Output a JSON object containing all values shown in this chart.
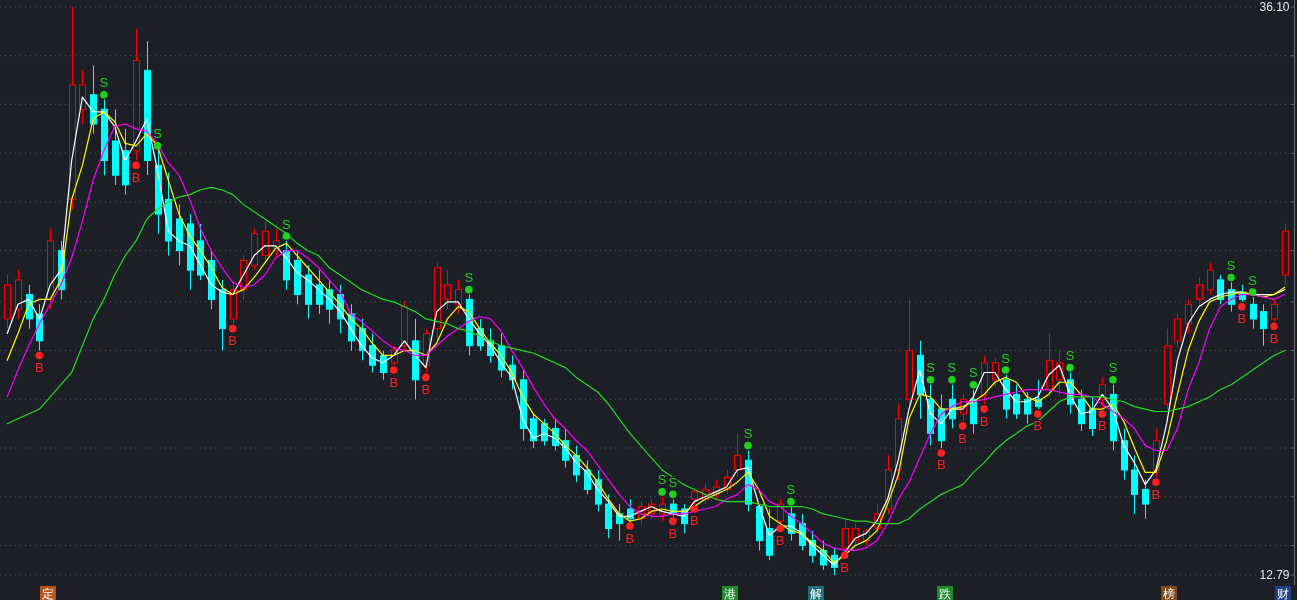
{
  "chart_data": {
    "type": "candlestick",
    "categories": [
      null,
      null,
      null,
      null,
      null,
      null,
      null,
      null,
      null,
      null,
      null,
      null,
      null,
      null,
      null,
      null,
      null,
      null,
      null,
      null,
      null,
      null,
      null,
      null,
      null,
      null,
      null,
      null,
      null,
      null,
      null,
      null,
      null,
      null,
      null,
      null,
      null,
      null,
      null,
      null,
      null,
      null,
      null,
      null,
      null,
      null,
      null,
      null,
      null,
      null,
      null,
      null,
      null,
      null,
      null,
      null,
      null,
      null,
      null,
      null,
      null,
      null,
      null,
      null,
      null,
      null,
      null,
      null,
      null,
      null,
      null,
      null,
      null,
      null,
      null,
      null,
      null,
      null,
      null,
      null,
      null,
      null,
      null,
      null,
      null,
      null,
      null,
      null,
      null,
      null,
      null,
      null,
      null,
      null,
      null,
      null,
      null,
      null,
      null,
      null,
      null,
      null,
      null,
      null,
      null,
      null,
      null,
      null,
      null,
      null,
      null,
      null,
      null,
      null,
      null,
      null,
      null,
      null,
      null,
      null
    ],
    "ohlc": [
      [
        23.3,
        25.1,
        22.9,
        24.7
      ],
      [
        23.7,
        25.3,
        23.3,
        24.9
      ],
      [
        24.3,
        24.7,
        22.9,
        23.3
      ],
      [
        23.5,
        23.9,
        22.0,
        22.4
      ],
      [
        24.1,
        27.0,
        23.7,
        26.5
      ],
      [
        26.1,
        26.5,
        24.1,
        24.5
      ],
      [
        28.2,
        36.1,
        27.8,
        32.9
      ],
      [
        31.9,
        33.5,
        31.3,
        32.9
      ],
      [
        32.5,
        33.7,
        30.9,
        31.3
      ],
      [
        31.9,
        32.3,
        29.2,
        29.8
      ],
      [
        30.6,
        31.9,
        28.8,
        29.2
      ],
      [
        30.2,
        31.1,
        28.4,
        28.8
      ],
      [
        30.2,
        35.2,
        29.8,
        33.9
      ],
      [
        33.5,
        34.7,
        29.2,
        29.8
      ],
      [
        29.6,
        30.2,
        26.8,
        27.6
      ],
      [
        28.2,
        29.3,
        25.9,
        26.5
      ],
      [
        27.4,
        28.0,
        25.5,
        26.1
      ],
      [
        27.2,
        27.6,
        24.5,
        25.3
      ],
      [
        26.5,
        27.2,
        24.9,
        25.1
      ],
      [
        25.7,
        26.1,
        23.7,
        24.1
      ],
      [
        24.5,
        24.9,
        22.0,
        22.9
      ],
      [
        23.3,
        24.9,
        23.1,
        24.5
      ],
      [
        24.5,
        25.9,
        24.1,
        25.7
      ],
      [
        25.5,
        27.0,
        25.3,
        26.8
      ],
      [
        25.9,
        27.3,
        25.6,
        26.9
      ],
      [
        26.1,
        27.0,
        25.8,
        26.5
      ],
      [
        26.1,
        26.5,
        24.5,
        24.9
      ],
      [
        25.7,
        26.1,
        23.9,
        24.3
      ],
      [
        25.1,
        25.5,
        23.3,
        23.9
      ],
      [
        24.7,
        25.3,
        23.5,
        23.9
      ],
      [
        24.5,
        24.9,
        23.1,
        23.7
      ],
      [
        24.3,
        24.7,
        22.7,
        23.3
      ],
      [
        23.5,
        23.9,
        22.0,
        22.4
      ],
      [
        22.9,
        23.3,
        21.6,
        22.0
      ],
      [
        22.2,
        22.7,
        21.1,
        21.4
      ],
      [
        21.8,
        22.0,
        20.8,
        21.1
      ],
      [
        21.5,
        22.2,
        21.4,
        22.0
      ],
      [
        22.2,
        24.0,
        22.0,
        23.8
      ],
      [
        22.4,
        23.3,
        20.0,
        20.8
      ],
      [
        21.4,
        22.9,
        21.1,
        22.7
      ],
      [
        22.9,
        25.6,
        22.4,
        25.4
      ],
      [
        24.1,
        25.3,
        23.7,
        24.7
      ],
      [
        23.9,
        24.9,
        23.5,
        24.5
      ],
      [
        24.1,
        24.3,
        21.8,
        22.2
      ],
      [
        22.9,
        23.3,
        22.0,
        22.2
      ],
      [
        22.4,
        22.9,
        21.5,
        21.8
      ],
      [
        22.2,
        22.7,
        20.9,
        21.2
      ],
      [
        21.4,
        21.8,
        20.4,
        20.8
      ],
      [
        20.8,
        21.2,
        18.3,
        18.8
      ],
      [
        19.2,
        19.4,
        18.0,
        18.3
      ],
      [
        19.0,
        19.2,
        18.1,
        18.3
      ],
      [
        18.8,
        19.2,
        17.9,
        18.1
      ],
      [
        18.3,
        18.8,
        17.2,
        17.5
      ],
      [
        17.7,
        18.1,
        16.6,
        16.9
      ],
      [
        17.1,
        17.5,
        16.1,
        16.3
      ],
      [
        16.7,
        17.1,
        15.4,
        15.7
      ],
      [
        15.7,
        16.1,
        14.3,
        14.7
      ],
      [
        15.3,
        15.7,
        14.2,
        14.9
      ],
      [
        15.5,
        15.9,
        15.0,
        15.1
      ],
      [
        15.1,
        15.8,
        14.9,
        15.6
      ],
      [
        15.3,
        15.9,
        15.1,
        15.7
      ],
      [
        15.3,
        16.0,
        15.0,
        15.7
      ],
      [
        15.7,
        15.9,
        15.2,
        15.3
      ],
      [
        15.5,
        15.7,
        14.5,
        14.9
      ],
      [
        15.9,
        16.3,
        15.7,
        16.2
      ],
      [
        15.9,
        16.5,
        15.7,
        16.3
      ],
      [
        16.1,
        16.7,
        15.9,
        16.4
      ],
      [
        16.3,
        17.1,
        16.1,
        16.8
      ],
      [
        17.1,
        18.6,
        16.8,
        17.7
      ],
      [
        17.5,
        17.9,
        15.4,
        15.7
      ],
      [
        15.6,
        15.7,
        13.8,
        14.2
      ],
      [
        14.7,
        15.5,
        13.4,
        13.6
      ],
      [
        15.0,
        15.9,
        14.9,
        15.7
      ],
      [
        15.3,
        15.6,
        14.2,
        14.5
      ],
      [
        14.9,
        15.3,
        13.8,
        14.0
      ],
      [
        14.2,
        14.6,
        13.3,
        13.6
      ],
      [
        13.8,
        14.2,
        13.0,
        13.2
      ],
      [
        13.6,
        13.9,
        12.79,
        13.1
      ],
      [
        13.9,
        15.1,
        13.8,
        14.7
      ],
      [
        14.2,
        14.9,
        14.0,
        14.7
      ],
      [
        14.2,
        14.7,
        14.0,
        14.6
      ],
      [
        14.7,
        15.7,
        14.5,
        15.3
      ],
      [
        15.5,
        17.7,
        15.3,
        17.1
      ],
      [
        17.1,
        19.8,
        16.7,
        19.2
      ],
      [
        20.0,
        24.1,
        19.8,
        22.0
      ],
      [
        21.8,
        22.4,
        19.2,
        20.2
      ],
      [
        20.0,
        20.6,
        18.1,
        18.6
      ],
      [
        19.6,
        20.2,
        18.0,
        18.3
      ],
      [
        20.0,
        20.6,
        18.8,
        19.2
      ],
      [
        19.4,
        20.2,
        19.1,
        20.0
      ],
      [
        20.0,
        20.4,
        18.6,
        19.0
      ],
      [
        20.2,
        21.8,
        19.8,
        21.5
      ],
      [
        20.8,
        21.7,
        20.5,
        21.5
      ],
      [
        20.8,
        21.0,
        19.2,
        19.6
      ],
      [
        20.2,
        20.6,
        19.2,
        19.4
      ],
      [
        20.0,
        20.3,
        19.0,
        19.4
      ],
      [
        20.0,
        20.8,
        19.6,
        19.7
      ],
      [
        20.4,
        22.7,
        20.1,
        21.6
      ],
      [
        20.8,
        22.0,
        20.2,
        21.5
      ],
      [
        20.8,
        21.1,
        19.4,
        19.8
      ],
      [
        20.0,
        20.4,
        18.7,
        19.0
      ],
      [
        19.6,
        20.1,
        18.5,
        18.8
      ],
      [
        20.0,
        20.9,
        19.6,
        20.6
      ],
      [
        20.2,
        20.6,
        17.9,
        18.3
      ],
      [
        18.3,
        18.8,
        16.7,
        17.1
      ],
      [
        17.1,
        17.7,
        15.3,
        16.1
      ],
      [
        16.3,
        16.7,
        15.1,
        15.7
      ],
      [
        17.1,
        18.8,
        16.8,
        18.3
      ],
      [
        19.8,
        22.9,
        19.6,
        22.2
      ],
      [
        22.4,
        23.5,
        22.1,
        23.3
      ],
      [
        23.1,
        24.1,
        22.7,
        23.9
      ],
      [
        24.1,
        25.0,
        23.8,
        24.7
      ],
      [
        24.5,
        25.6,
        24.3,
        25.3
      ],
      [
        24.9,
        25.1,
        23.9,
        24.1
      ],
      [
        24.5,
        24.8,
        23.6,
        23.9
      ],
      [
        24.4,
        24.7,
        24.0,
        24.1
      ],
      [
        23.9,
        24.2,
        22.9,
        23.3
      ],
      [
        23.6,
        23.9,
        22.2,
        22.9
      ],
      [
        23.3,
        24.1,
        23.2,
        23.9
      ],
      [
        25.1,
        27.2,
        24.7,
        26.9
      ]
    ],
    "colors": [
      "#ff0000",
      "#ff0000",
      "#00ffff",
      "#00ffff",
      "#ff0000",
      "#00ffff",
      "#ff0000",
      "#ff0000",
      "#00ffff",
      "#00ffff",
      "#00ffff",
      "#00ffff",
      "#ff0000",
      "#00ffff",
      "#00ffff",
      "#00ffff",
      "#00ffff",
      "#00ffff",
      "#00ffff",
      "#00ffff",
      "#00ffff",
      "#ff0000",
      "#ff0000",
      "#ff0000",
      "#ff0000",
      "#ff0000",
      "#00ffff",
      "#00ffff",
      "#00ffff",
      "#00ffff",
      "#00ffff",
      "#00ffff",
      "#00ffff",
      "#00ffff",
      "#00ffff",
      "#00ffff",
      "#ff0000",
      "#ff0000",
      "#00ffff",
      "#ff0000",
      "#ff0000",
      "#ff0000",
      "#ff0000",
      "#00ffff",
      "#00ffff",
      "#00ffff",
      "#00ffff",
      "#00ffff",
      "#00ffff",
      "#00ffff",
      "#00ffff",
      "#00ffff",
      "#00ffff",
      "#00ffff",
      "#00ffff",
      "#00ffff",
      "#00ffff",
      "#00ffff",
      "#00ffff",
      "#ff0000",
      "#ff0000",
      "#ff0000",
      "#00ffff",
      "#00ffff",
      "#ff0000",
      "#ff0000",
      "#ff0000",
      "#ff0000",
      "#ff0000",
      "#00ffff",
      "#00ffff",
      "#00ffff",
      "#ff0000",
      "#00ffff",
      "#00ffff",
      "#00ffff",
      "#00ffff",
      "#00ffff",
      "#ff0000",
      "#ff0000",
      "#ff0000",
      "#ff0000",
      "#ff0000",
      "#ff0000",
      "#ff0000",
      "#00ffff",
      "#00ffff",
      "#00ffff",
      "#00ffff",
      "#ff0000",
      "#00ffff",
      "#ff0000",
      "#ff0000",
      "#00ffff",
      "#00ffff",
      "#00ffff",
      "#00ffff",
      "#ff0000",
      "#ff0000",
      "#00ffff",
      "#00ffff",
      "#00ffff",
      "#ff0000",
      "#00ffff",
      "#00ffff",
      "#00ffff",
      "#00ffff",
      "#ff0000",
      "#ff0000",
      "#ff0000",
      "#ff0000",
      "#ff0000",
      "#ff0000",
      "#00ffff",
      "#00ffff",
      "#00ffff",
      "#00ffff",
      "#00ffff",
      "#ff0000",
      "#ff0000"
    ],
    "grid": "y",
    "tick_labels": "y",
    "ylim": [
      12.79,
      36.1
    ],
    "yticks": [
      {
        "value": 36.1,
        "label": "36.10"
      },
      {
        "value": 34.1,
        "label": null
      },
      {
        "value": 32.1,
        "label": null
      },
      {
        "value": 30.1,
        "label": null
      },
      {
        "value": 28.1,
        "label": null
      },
      {
        "value": 26.1,
        "label": null
      },
      {
        "value": 24.0,
        "label": null
      },
      {
        "value": 22.0,
        "label": null
      },
      {
        "value": 20.0,
        "label": null
      },
      {
        "value": 18.0,
        "label": null
      },
      {
        "value": 16.0,
        "label": null
      },
      {
        "value": 14.0,
        "label": null
      },
      {
        "value": 12.79,
        "label": "12.79"
      }
    ],
    "annotations": [
      "定",
      "港",
      "解",
      "跌",
      "榜",
      "财"
    ],
    "series": [
      {
        "type": "line",
        "color": "#ffffff",
        "values": [
          22.7,
          23.9,
          24.1,
          23.3,
          24.7,
          25.3,
          29.8,
          32.4,
          31.8,
          31.8,
          31.2,
          29.8,
          30.6,
          31.5,
          29.4,
          26.9,
          26.5,
          26.3,
          25.5,
          24.7,
          24.4,
          24.3,
          25.1,
          25.9,
          26.3,
          26.3,
          25.8,
          25.2,
          24.9,
          24.5,
          24.1,
          23.6,
          22.9,
          22.2,
          21.7,
          21.5,
          21.8,
          22.4,
          21.8,
          21.3,
          23.6,
          24.0,
          24.0,
          23.3,
          22.7,
          22.2,
          21.5,
          20.9,
          19.2,
          18.4,
          18.6,
          18.4,
          18.0,
          17.4,
          17.0,
          16.3,
          15.8,
          15.2,
          15.2,
          15.4,
          15.6,
          15.4,
          15.3,
          15.2,
          15.8,
          16.0,
          16.2,
          16.4,
          17.1,
          17.2,
          15.7,
          14.4,
          14.8,
          14.8,
          14.5,
          14.0,
          13.6,
          13.2,
          13.7,
          14.3,
          14.5,
          15.0,
          15.9,
          17.5,
          19.6,
          21.2,
          19.4,
          19.0,
          19.6,
          19.6,
          20.1,
          21.1,
          21.1,
          20.4,
          19.9,
          19.9,
          20.1,
          21.0,
          21.4,
          20.2,
          19.4,
          19.5,
          20.2,
          19.6,
          18.1,
          17.4,
          16.5,
          17.1,
          19.0,
          21.6,
          23.1,
          23.8,
          24.1,
          24.3,
          24.4,
          24.4,
          24.3,
          24.3,
          24.3,
          24.5
        ]
      },
      {
        "type": "line",
        "color": "#ffff00",
        "values": [
          21.6,
          22.7,
          23.9,
          24.1,
          24.1,
          24.9,
          28.2,
          29.6,
          31.5,
          31.8,
          31.4,
          30.5,
          30.4,
          30.9,
          30.4,
          29.0,
          27.6,
          26.7,
          26.1,
          25.4,
          24.6,
          24.3,
          24.5,
          25.0,
          25.6,
          26.2,
          26.4,
          25.9,
          25.4,
          24.9,
          24.4,
          23.9,
          23.3,
          22.9,
          22.3,
          21.8,
          21.8,
          22.0,
          22.0,
          21.8,
          22.3,
          23.3,
          23.8,
          23.6,
          22.9,
          22.3,
          21.8,
          21.1,
          20.1,
          19.4,
          19.0,
          18.6,
          18.1,
          17.7,
          17.2,
          16.6,
          15.9,
          15.3,
          15.0,
          15.1,
          15.4,
          15.5,
          15.4,
          15.4,
          15.6,
          15.9,
          16.1,
          16.3,
          16.6,
          17.0,
          16.3,
          15.2,
          14.9,
          14.6,
          14.5,
          14.1,
          13.8,
          13.3,
          13.6,
          14.0,
          14.2,
          14.6,
          15.7,
          16.9,
          19.2,
          20.2,
          20.1,
          19.6,
          19.6,
          19.7,
          19.9,
          20.2,
          20.7,
          20.9,
          20.7,
          20.1,
          19.9,
          20.2,
          20.7,
          20.7,
          20.2,
          19.6,
          19.6,
          19.8,
          19.1,
          18.0,
          17.0,
          17.0,
          18.3,
          20.2,
          22.0,
          23.2,
          24.0,
          24.2,
          24.3,
          24.4,
          24.3,
          24.2,
          24.3,
          24.6
        ]
      },
      {
        "type": "line",
        "color": "#ff00ff",
        "values": [
          20.1,
          21.2,
          22.2,
          23.1,
          23.9,
          24.7,
          25.8,
          27.3,
          29.0,
          30.2,
          31.2,
          31.3,
          31.1,
          31.0,
          30.5,
          29.7,
          29.2,
          28.2,
          27.0,
          26.1,
          25.4,
          24.8,
          24.6,
          24.7,
          25.1,
          25.8,
          26.1,
          26.1,
          25.8,
          25.4,
          24.9,
          24.4,
          23.5,
          23.2,
          22.8,
          22.4,
          22.1,
          22.0,
          21.8,
          21.8,
          22.2,
          22.6,
          22.9,
          23.2,
          23.4,
          23.3,
          22.8,
          22.0,
          21.3,
          20.5,
          19.8,
          19.2,
          18.8,
          18.3,
          17.9,
          17.3,
          16.7,
          16.1,
          15.6,
          15.3,
          15.2,
          15.2,
          15.3,
          15.3,
          15.4,
          15.5,
          15.6,
          15.9,
          16.1,
          16.5,
          16.3,
          15.8,
          15.6,
          15.2,
          14.9,
          14.5,
          14.1,
          13.9,
          13.8,
          13.8,
          13.9,
          14.2,
          14.9,
          15.9,
          16.6,
          17.6,
          18.6,
          19.4,
          19.7,
          19.9,
          19.9,
          20.0,
          20.1,
          20.2,
          20.3,
          20.4,
          20.4,
          20.4,
          20.3,
          20.2,
          20.2,
          20.1,
          19.8,
          19.5,
          19.2,
          18.8,
          18.1,
          17.9,
          17.9,
          18.8,
          20.4,
          21.5,
          22.9,
          23.8,
          24.1,
          24.3,
          24.3,
          24.2,
          24.1,
          24.3
        ]
      },
      {
        "type": "line",
        "color": "#22dd22",
        "values": [
          19.0,
          19.2,
          19.4,
          19.6,
          20.1,
          20.6,
          21.1,
          22.2,
          23.3,
          24.1,
          25.1,
          25.9,
          26.5,
          27.4,
          27.8,
          28.1,
          28.3,
          28.4,
          28.6,
          28.7,
          28.6,
          28.4,
          28.0,
          27.7,
          27.4,
          27.1,
          26.8,
          26.4,
          26.1,
          25.9,
          25.4,
          25.1,
          24.8,
          24.5,
          24.3,
          24.1,
          24.0,
          23.8,
          23.6,
          23.3,
          23.2,
          23.1,
          22.9,
          22.8,
          22.6,
          22.4,
          22.2,
          22.1,
          22.0,
          21.9,
          21.7,
          21.5,
          21.3,
          20.9,
          20.6,
          20.3,
          19.8,
          19.2,
          18.6,
          18.1,
          17.6,
          17.1,
          16.8,
          16.5,
          16.3,
          16.1,
          15.9,
          15.8,
          15.8,
          15.8,
          15.7,
          15.6,
          15.6,
          15.6,
          15.6,
          15.5,
          15.3,
          15.2,
          15.1,
          15.0,
          15.0,
          14.9,
          14.9,
          14.9,
          15.1,
          15.5,
          15.8,
          16.1,
          16.3,
          16.5,
          17.0,
          17.4,
          17.9,
          18.3,
          18.6,
          18.9,
          19.1,
          19.5,
          19.9,
          20.1,
          20.1,
          20.1,
          20.1,
          20.0,
          19.9,
          19.7,
          19.6,
          19.5,
          19.5,
          19.6,
          19.7,
          19.9,
          20.1,
          20.4,
          20.6,
          20.9,
          21.2,
          21.5,
          21.8,
          22.0
        ]
      },
      {
        "type": "scatter",
        "color": "#ff2020",
        "marker": "circle",
        "values": [
          null,
          null,
          null,
          21.8,
          null,
          null,
          null,
          null,
          null,
          null,
          null,
          null,
          29.6,
          null,
          null,
          null,
          null,
          null,
          null,
          null,
          null,
          22.9,
          null,
          null,
          null,
          null,
          null,
          null,
          null,
          null,
          null,
          null,
          null,
          null,
          null,
          null,
          21.2,
          null,
          null,
          20.9,
          null,
          null,
          null,
          null,
          null,
          null,
          null,
          null,
          null,
          null,
          null,
          null,
          null,
          null,
          null,
          null,
          null,
          null,
          14.8,
          null,
          null,
          null,
          15.0,
          null,
          15.5,
          null,
          null,
          null,
          null,
          null,
          null,
          null,
          14.7,
          null,
          null,
          null,
          null,
          null,
          13.6,
          null,
          null,
          null,
          null,
          null,
          null,
          null,
          null,
          17.8,
          null,
          18.9,
          null,
          19.6,
          null,
          null,
          null,
          null,
          19.4,
          null,
          null,
          null,
          null,
          null,
          19.4,
          null,
          null,
          null,
          null,
          16.6,
          null,
          null,
          null,
          null,
          null,
          null,
          null,
          23.8,
          null,
          null,
          23.0,
          null
        ],
        "value_labels": [
          null,
          null,
          null,
          "B",
          null,
          null,
          null,
          null,
          null,
          null,
          null,
          null,
          "B",
          null,
          null,
          null,
          null,
          null,
          null,
          null,
          null,
          "B",
          null,
          null,
          null,
          null,
          null,
          null,
          null,
          null,
          null,
          null,
          null,
          null,
          null,
          null,
          "B",
          null,
          null,
          "B",
          null,
          null,
          null,
          null,
          null,
          null,
          null,
          null,
          null,
          null,
          null,
          null,
          null,
          null,
          null,
          null,
          null,
          null,
          "B",
          null,
          null,
          null,
          "B",
          null,
          "B",
          null,
          null,
          null,
          null,
          null,
          null,
          null,
          "B",
          null,
          null,
          null,
          null,
          null,
          "B",
          null,
          null,
          null,
          null,
          null,
          null,
          null,
          null,
          "B",
          null,
          "B",
          null,
          "B",
          null,
          null,
          null,
          null,
          "B",
          null,
          null,
          null,
          null,
          null,
          "B",
          null,
          null,
          null,
          null,
          "B",
          null,
          null,
          null,
          null,
          null,
          null,
          null,
          "B",
          null,
          null,
          "B",
          null
        ]
      },
      {
        "type": "scatter",
        "color": "#1fd21f",
        "marker": "circle",
        "values": [
          null,
          null,
          null,
          null,
          null,
          null,
          null,
          null,
          null,
          32.5,
          null,
          null,
          null,
          null,
          30.4,
          null,
          null,
          null,
          null,
          null,
          null,
          null,
          null,
          null,
          null,
          null,
          26.7,
          null,
          null,
          null,
          null,
          null,
          null,
          null,
          null,
          null,
          null,
          null,
          null,
          null,
          null,
          null,
          null,
          24.5,
          null,
          null,
          null,
          null,
          null,
          null,
          null,
          null,
          null,
          null,
          null,
          null,
          null,
          null,
          null,
          null,
          null,
          16.2,
          16.1,
          null,
          null,
          null,
          null,
          null,
          null,
          18.1,
          null,
          null,
          null,
          15.8,
          null,
          null,
          null,
          null,
          null,
          null,
          null,
          null,
          null,
          null,
          null,
          null,
          20.8,
          null,
          20.8,
          null,
          20.6,
          null,
          null,
          21.2,
          null,
          null,
          null,
          null,
          null,
          21.3,
          null,
          null,
          null,
          20.8,
          null,
          null,
          null,
          null,
          null,
          null,
          null,
          null,
          null,
          null,
          25.0,
          null,
          24.4,
          null,
          null,
          null
        ],
        "value_labels": [
          null,
          null,
          null,
          null,
          null,
          null,
          null,
          null,
          null,
          "S",
          null,
          null,
          null,
          null,
          "S",
          null,
          null,
          null,
          null,
          null,
          null,
          null,
          null,
          null,
          null,
          null,
          "S",
          null,
          null,
          null,
          null,
          null,
          null,
          null,
          null,
          null,
          null,
          null,
          null,
          null,
          null,
          null,
          null,
          "S",
          null,
          null,
          null,
          null,
          null,
          null,
          null,
          null,
          null,
          null,
          null,
          null,
          null,
          null,
          null,
          null,
          null,
          "S",
          "S",
          null,
          null,
          null,
          null,
          null,
          null,
          "S",
          null,
          null,
          null,
          "S",
          null,
          null,
          null,
          null,
          null,
          null,
          null,
          null,
          null,
          null,
          null,
          null,
          "S",
          null,
          "S",
          null,
          "S",
          null,
          null,
          "S",
          null,
          null,
          null,
          null,
          null,
          "S",
          null,
          null,
          null,
          "S",
          null,
          null,
          null,
          null,
          null,
          null,
          null,
          null,
          null,
          null,
          "S",
          null,
          "S",
          null,
          null,
          null
        ]
      }
    ]
  }
}
